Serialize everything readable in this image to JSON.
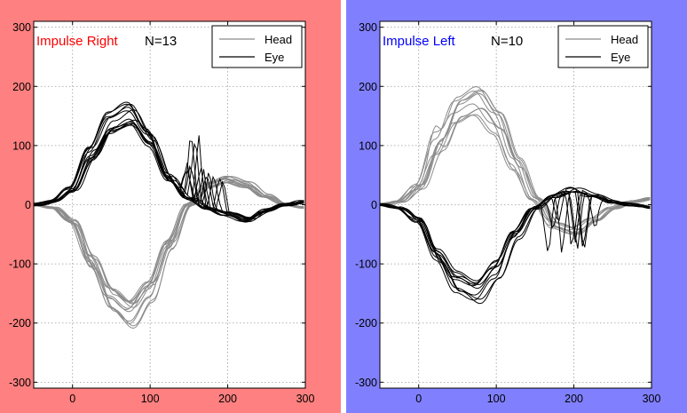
{
  "colors": {
    "left_panel_bg": "#ff8080",
    "right_panel_bg": "#8080ff",
    "plot_bg": "#ffffff",
    "gridline": "#9a9a9a",
    "head_line": "#8c8c8c",
    "eye_line": "#000000",
    "title_right": "#ff0000",
    "title_left": "#0000ff"
  },
  "chart_data": [
    {
      "type": "line",
      "panel": "left",
      "title": "Impulse Right",
      "n_label": "N=13",
      "legend": [
        "Head",
        "Eye"
      ],
      "legend_position": "top-right",
      "xlabel": "",
      "ylabel": "",
      "xlim": [
        -50,
        300
      ],
      "ylim": [
        -310,
        310
      ],
      "xticks": [
        0,
        100,
        200,
        300
      ],
      "yticks": [
        -300,
        -200,
        -100,
        0,
        100,
        200,
        300
      ],
      "grid": true,
      "series": [
        {
          "name": "Head",
          "color": "gray",
          "count": 13,
          "x": [
            -50,
            -25,
            0,
            25,
            50,
            75,
            100,
            125,
            150,
            175,
            200,
            225,
            250,
            275,
            300
          ],
          "y": [
            0,
            -5,
            -30,
            -100,
            -165,
            -190,
            -150,
            -70,
            0,
            35,
            45,
            35,
            15,
            0,
            -5
          ]
        },
        {
          "name": "Eye",
          "color": "black",
          "count": 13,
          "x": [
            -50,
            -25,
            0,
            25,
            50,
            75,
            100,
            125,
            150,
            175,
            200,
            225,
            250,
            275,
            300
          ],
          "y": [
            0,
            5,
            25,
            85,
            135,
            150,
            110,
            45,
            10,
            -5,
            -15,
            -25,
            -10,
            0,
            5
          ],
          "saccades": {
            "x_range": [
              145,
              195
            ],
            "y_range": [
              -45,
              150
            ]
          }
        }
      ]
    },
    {
      "type": "line",
      "panel": "right",
      "title": "Impulse Left",
      "n_label": "N=10",
      "legend": [
        "Head",
        "Eye"
      ],
      "legend_position": "top-right",
      "xlabel": "",
      "ylabel": "",
      "xlim": [
        -50,
        300
      ],
      "ylim": [
        -310,
        310
      ],
      "xticks": [
        0,
        100,
        200,
        300
      ],
      "yticks": [
        -300,
        -200,
        -100,
        0,
        100,
        200,
        300
      ],
      "grid": true,
      "series": [
        {
          "name": "Head",
          "color": "gray",
          "count": 10,
          "x": [
            -50,
            -25,
            0,
            25,
            50,
            75,
            100,
            125,
            150,
            175,
            200,
            225,
            250,
            275,
            300
          ],
          "y": [
            0,
            5,
            30,
            100,
            160,
            175,
            140,
            70,
            10,
            -35,
            -45,
            -25,
            -5,
            5,
            10
          ],
          "early_peak_at": 20
        },
        {
          "name": "Eye",
          "color": "black",
          "count": 10,
          "x": [
            -50,
            -25,
            0,
            25,
            50,
            75,
            100,
            125,
            150,
            175,
            200,
            225,
            250,
            275,
            300
          ],
          "y": [
            0,
            -5,
            -25,
            -85,
            -130,
            -145,
            -110,
            -50,
            -5,
            15,
            25,
            15,
            5,
            0,
            -5
          ],
          "saccades": {
            "x_range": [
              160,
              230
            ],
            "y_range": [
              -155,
              30
            ]
          }
        }
      ]
    }
  ]
}
